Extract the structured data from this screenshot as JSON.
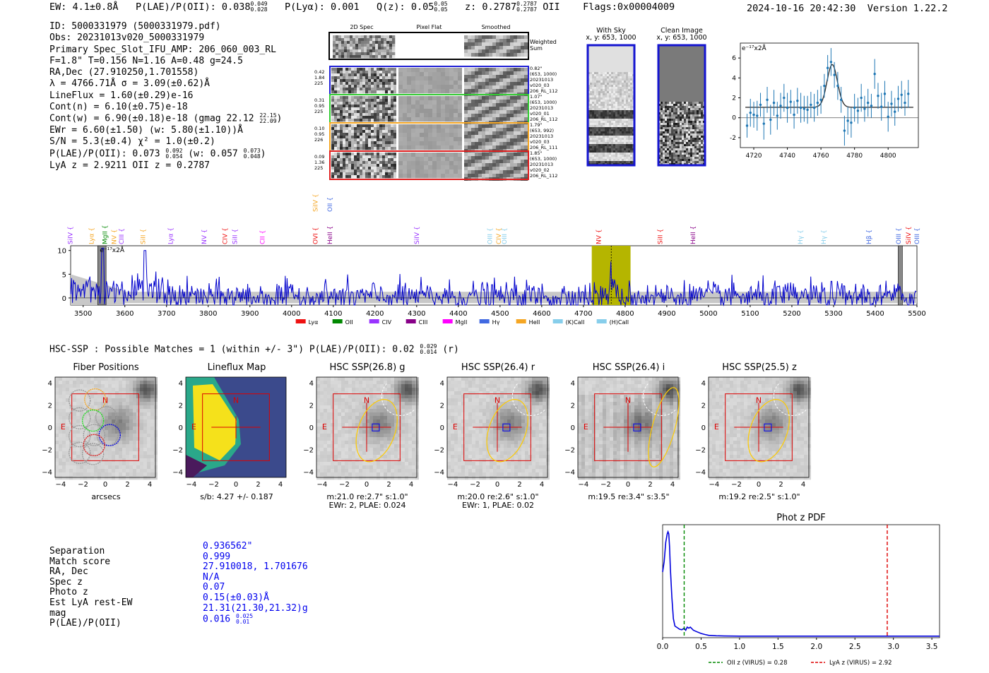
{
  "header": {
    "ew": "EW: 4.1±0.8Å",
    "plae_label": "P(LAE)/P(OII): 0.038",
    "plae_hi": "0.049",
    "plae_lo": "0.028",
    "plya": "P(Lyα): 0.001",
    "qz_label": "Q(z): 0.05",
    "qz_hi": "0.05",
    "qz_lo": "0.05",
    "z_label": "z: 0.2787",
    "z_hi": "0.2787",
    "z_lo": "0.2787",
    "z_line": "OII",
    "flags": "Flags:0x00004009",
    "datetime": "2024-10-16 20:42:30",
    "version": "Version 1.22.2"
  },
  "info": {
    "lines": [
      "ID: 5000331979 (5000331979.pdf)",
      "Obs: 20231013v020_5000331979",
      "Primary Spec_Slot_IFU_AMP: 206_060_003_RL",
      "F=1.8\"  T=0.156  N=1.16  A=0.48  g=24.5",
      "RA,Dec (27.910250,1.701558)",
      "λ = 4766.71Å  σ = 3.09(±0.62)Å",
      "LineFlux = 1.60(±0.29)e-16",
      "Cont(n) = 6.10(±0.75)e-18"
    ],
    "contw": "Cont(w) = 6.90(±0.18)e-18 (gmag 22.12",
    "contw_hi": "22.15",
    "contw_lo": "22.09",
    "ewr": "EWr = 6.60(±1.50) (w: 5.80(±1.10))Å",
    "sn": "S/N = 5.3(±0.4)  χ² = 1.0(±0.2)",
    "plae": "P(LAE)/P(OII): 0.073",
    "plae_hi": "0.092",
    "plae_lo": "0.054",
    "plae_w": "(w: 0.057",
    "plae_w_hi": "0.073",
    "plae_w_lo": "0.048",
    "lyaz": "LyA z = 2.9211  OII z = 0.2787"
  },
  "cutouts": {
    "col_titles": [
      "2D Spec",
      "Pixel Flat",
      "Smoothed"
    ],
    "weighted_sum": "Weighted Sum",
    "rows": [
      {
        "left": [
          "0.42",
          "1.84",
          "225"
        ],
        "right": [
          "0.82\"",
          "(653, 1000)",
          "20231013",
          "v020_03",
          "206_RL_112"
        ],
        "color": "#1f1fd6"
      },
      {
        "left": [
          "0.31",
          "0.95",
          "225"
        ],
        "right": [
          "1.07\"",
          "(653, 1000)",
          "20231013",
          "v020_01",
          "206_RL_112"
        ],
        "color": "#33cc33"
      },
      {
        "left": [
          "0.10",
          "0.95",
          "226"
        ],
        "right": [
          "1.79\"",
          "(653, 992)",
          "20231013",
          "v020_03",
          "206_RL_111"
        ],
        "color": "#f5a623"
      },
      {
        "left": [
          "0.09",
          "1.36",
          "225"
        ],
        "right": [
          "1.85\"",
          "(653, 1000)",
          "20231013",
          "v020_02",
          "206_RL_112"
        ],
        "color": "#e01f1f"
      }
    ]
  },
  "sky": {
    "with_sky": "With Sky",
    "with_sky_xy": "x, y: 653, 1000",
    "clean": "Clean Image",
    "clean_xy": "x, y: 653, 1000"
  },
  "hsc": {
    "summary": "HSC-SSP : Possible Matches = 1 (within +/- 3\")  P(LAE)/P(OII): 0.02",
    "summary_hi": "0.029",
    "summary_lo": "0.014",
    "summary_band": "(r)",
    "panels": [
      {
        "title": "Fiber Positions",
        "sub1": "arcsecs",
        "sub2": ""
      },
      {
        "title": "Lineflux Map",
        "sub1": "s/b: 4.27 +/- 0.187",
        "sub2": ""
      },
      {
        "title": "HSC SSP(26.8) g",
        "sub1": "m:21.0  re:2.7\"  s:1.0\"",
        "sub2": "EWr: 2, PLAE: 0.024"
      },
      {
        "title": "HSC SSP(26.4) r",
        "sub1": "m:20.0  re:2.6\"  s:1.0\"",
        "sub2": "EWr: 1, PLAE: 0.02"
      },
      {
        "title": "HSC SSP(26.4) i",
        "sub1": "m:19.5  re:3.4\"  s:3.5\"",
        "sub2": ""
      },
      {
        "title": "HSC SSP(25.5) z",
        "sub1": "m:19.2  re:2.5\"  s:1.0\"",
        "sub2": ""
      }
    ],
    "compass_n": "N",
    "compass_e": "E"
  },
  "match": {
    "labels": [
      "Separation",
      "Match score",
      "RA, Dec",
      "Spec z",
      "Photo z",
      "Est LyA rest-EW",
      "mag",
      "P(LAE)/P(OII)"
    ],
    "values": [
      "0.936562\"",
      "0.999",
      "27.910018, 1.701676",
      "N/A",
      "0.07",
      "0.15(±0.03)Å",
      "21.31(21.30,21.32)g",
      "0.016"
    ],
    "plae_hi": "0.025",
    "plae_lo": "0.01"
  },
  "colors": {
    "spectrum": "#0000cc",
    "highlight": "#b5b500",
    "errbar": "#1f77b4",
    "oii_line": "#008800",
    "lya_line": "#dd0000"
  },
  "chart_data": [
    {
      "type": "scatter",
      "title": "",
      "ylabel": "e⁻¹⁷x2Å",
      "xlim": [
        4712,
        4818
      ],
      "ylim": [
        -3,
        7.5
      ],
      "xticks": [
        4720,
        4740,
        4760,
        4780,
        4800
      ],
      "yticks": [
        -2,
        0,
        2,
        4,
        6
      ],
      "points": [
        [
          4716,
          -0.8,
          1.2
        ],
        [
          4718,
          0.5,
          1.4
        ],
        [
          4720,
          0.3,
          1.3
        ],
        [
          4722,
          0.2,
          1.5
        ],
        [
          4724,
          1.3,
          1.2
        ],
        [
          4726,
          -0.6,
          1.6
        ],
        [
          4728,
          1.8,
          1.3
        ],
        [
          4730,
          -0.2,
          1.5
        ],
        [
          4732,
          1.5,
          1.3
        ],
        [
          4734,
          0.2,
          1.4
        ],
        [
          4736,
          1.2,
          1.3
        ],
        [
          4738,
          2.0,
          1.4
        ],
        [
          4740,
          1.0,
          1.5
        ],
        [
          4742,
          1.6,
          1.2
        ],
        [
          4744,
          0.3,
          1.4
        ],
        [
          4746,
          1.7,
          1.3
        ],
        [
          4748,
          1.0,
          1.5
        ],
        [
          4750,
          0.9,
          1.3
        ],
        [
          4752,
          0.8,
          1.4
        ],
        [
          4754,
          1.3,
          1.3
        ],
        [
          4756,
          1.0,
          1.4
        ],
        [
          4758,
          1.5,
          1.3
        ],
        [
          4760,
          1.8,
          1.4
        ],
        [
          4762,
          3.2,
          1.2
        ],
        [
          4764,
          5.0,
          1.3
        ],
        [
          4766,
          5.6,
          1.4
        ],
        [
          4768,
          4.3,
          1.3
        ],
        [
          4770,
          3.2,
          1.4
        ],
        [
          4772,
          1.8,
          1.3
        ],
        [
          4774,
          -1.3,
          1.5
        ],
        [
          4776,
          -0.3,
          1.4
        ],
        [
          4778,
          -0.5,
          1.5
        ],
        [
          4780,
          1.0,
          1.4
        ],
        [
          4782,
          0.7,
          1.3
        ],
        [
          4784,
          2.0,
          1.4
        ],
        [
          4786,
          0.9,
          1.3
        ],
        [
          4788,
          1.5,
          1.4
        ],
        [
          4790,
          1.2,
          1.2
        ],
        [
          4792,
          4.4,
          1.5
        ],
        [
          4794,
          2.2,
          1.3
        ],
        [
          4796,
          1.1,
          1.4
        ],
        [
          4798,
          2.4,
          1.3
        ],
        [
          4800,
          0.1,
          1.5
        ],
        [
          4802,
          1.4,
          1.3
        ],
        [
          4804,
          0.6,
          1.4
        ],
        [
          4806,
          1.9,
          1.3
        ],
        [
          4808,
          2.3,
          1.4
        ],
        [
          4810,
          1.5,
          1.3
        ],
        [
          4812,
          2.4,
          1.4
        ]
      ],
      "fit_baseline": 1.05,
      "fit_peak": 4766.71,
      "fit_amp": 4.3,
      "fit_sigma": 3.09
    },
    {
      "type": "line",
      "title": "",
      "ylabel": "e⁻¹⁷x2Å",
      "xlim": [
        3470,
        5500
      ],
      "ylim": [
        -1.5,
        11
      ],
      "xticks": [
        3500,
        3600,
        3700,
        3800,
        3900,
        4000,
        4100,
        4200,
        4300,
        4400,
        4500,
        4600,
        4700,
        4800,
        4900,
        5000,
        5100,
        5200,
        5300,
        5400,
        5500
      ],
      "yticks": [
        0,
        5,
        10
      ],
      "highlight_range": [
        4720,
        4813
      ],
      "peak": 4766.71,
      "masked": [
        [
          3535,
          3555
        ],
        [
          5455,
          5465
        ]
      ],
      "lines": [
        {
          "name": "SiIV",
          "x": 3469,
          "color": "#9933ff"
        },
        {
          "name": "Lyα",
          "x": 3520,
          "color": "#f5a623"
        },
        {
          "name": "MgII",
          "x": 3552,
          "color": "#008800"
        },
        {
          "name": "NV",
          "x": 3574,
          "color": "#f5a623"
        },
        {
          "name": "CIII",
          "x": 3592,
          "color": "#9933ff"
        },
        {
          "name": "SiII",
          "x": 3644,
          "color": "#f5a623"
        },
        {
          "name": "Lyα",
          "x": 3710,
          "color": "#9933ff"
        },
        {
          "name": "NV",
          "x": 3790,
          "color": "#9933ff"
        },
        {
          "name": "CIV",
          "x": 3840,
          "color": "#ee1111"
        },
        {
          "name": "SiII",
          "x": 3864,
          "color": "#9933ff"
        },
        {
          "name": "CII",
          "x": 3930,
          "color": "#ff00ff"
        },
        {
          "name": "OVI",
          "x": 4057,
          "color": "#ee1111"
        },
        {
          "name": "HeII",
          "x": 4092,
          "color": "#880088"
        },
        {
          "name": "SiIV",
          "x": 4300,
          "color": "#9933ff"
        },
        {
          "name": "OIII",
          "x": 4476,
          "color": "#87ceeb"
        },
        {
          "name": "CIV",
          "x": 4497,
          "color": "#f5a623"
        },
        {
          "name": "OIII",
          "x": 4510,
          "color": "#87ceeb"
        },
        {
          "name": "NV",
          "x": 4737,
          "color": "#ee1111"
        },
        {
          "name": "SiII",
          "x": 4884,
          "color": "#ee1111"
        },
        {
          "name": "HeII",
          "x": 4963,
          "color": "#880088"
        },
        {
          "name": "Hγ",
          "x": 5220,
          "color": "#87ceeb"
        },
        {
          "name": "Hγ",
          "x": 5276,
          "color": "#87ceeb"
        },
        {
          "name": "Hβ",
          "x": 5385,
          "color": "#4169e1"
        },
        {
          "name": "OIII",
          "x": 5456,
          "color": "#4169e1"
        },
        {
          "name": "SiIV",
          "x": 5480,
          "color": "#ee1111"
        },
        {
          "name": "OIII",
          "x": 5500,
          "color": "#4169e1"
        }
      ],
      "top_lines": [
        {
          "name": "SiIV",
          "x": 4057,
          "color": "#f5a623"
        },
        {
          "name": "OII",
          "x": 4092,
          "color": "#4169e1"
        }
      ],
      "legend": [
        {
          "name": "Lyα",
          "color": "#ee1111"
        },
        {
          "name": "OII",
          "color": "#008800"
        },
        {
          "name": "CIV",
          "color": "#9933ff"
        },
        {
          "name": "CIII",
          "color": "#880088"
        },
        {
          "name": "MgII",
          "color": "#ff00ff"
        },
        {
          "name": "Hγ",
          "color": "#4169e1"
        },
        {
          "name": "HeII",
          "color": "#f5a623"
        },
        {
          "name": "(K)CaII",
          "color": "#87ceeb"
        },
        {
          "name": "(H)CaII",
          "color": "#87ceeb"
        }
      ]
    },
    {
      "type": "line",
      "title": "Phot z PDF",
      "xlim": [
        0,
        3.6
      ],
      "ylim": [
        0,
        1
      ],
      "xticks": [
        0.0,
        0.5,
        1.0,
        1.5,
        2.0,
        2.5,
        3.0,
        3.5
      ],
      "x": [
        0.0,
        0.02,
        0.04,
        0.06,
        0.07,
        0.08,
        0.09,
        0.1,
        0.12,
        0.14,
        0.16,
        0.18,
        0.2,
        0.22,
        0.25,
        0.28,
        0.3,
        0.32,
        0.34,
        0.36,
        0.4,
        0.45,
        0.5,
        0.55,
        0.6,
        0.7,
        0.8,
        1.0,
        1.5,
        2.0,
        2.5,
        3.0,
        3.6
      ],
      "y": [
        0.62,
        0.72,
        0.9,
        0.98,
        1.0,
        0.98,
        0.86,
        0.66,
        0.38,
        0.18,
        0.11,
        0.1,
        0.09,
        0.08,
        0.075,
        0.09,
        0.07,
        0.1,
        0.09,
        0.1,
        0.07,
        0.055,
        0.04,
        0.03,
        0.022,
        0.018,
        0.016,
        0.015,
        0.015,
        0.015,
        0.015,
        0.015,
        0.015
      ],
      "vlines": [
        {
          "x": 0.28,
          "color": "#008800",
          "label": "OII z (VIRUS) = 0.28"
        },
        {
          "x": 2.92,
          "color": "#dd0000",
          "label": "LyA z (VIRUS) = 2.92"
        }
      ]
    }
  ]
}
